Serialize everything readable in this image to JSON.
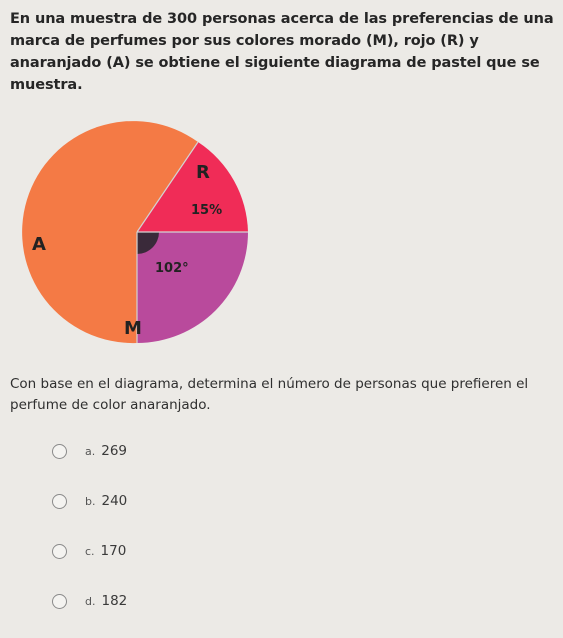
{
  "question": {
    "text": "En una muestra de 300 personas acerca de las preferencias de una marca de perfumes por sus colores morado (M), rojo (R) y anaranjado (A) se obtiene el siguiente diagrama de pastel que se muestra."
  },
  "chart_data": {
    "type": "pie",
    "slices": [
      {
        "name": "A",
        "label": "A",
        "color": "#f47a45"
      },
      {
        "name": "R",
        "label": "R",
        "value_label": "15%",
        "value": 15,
        "unit": "%",
        "color": "#f02c57"
      },
      {
        "name": "M",
        "label": "M",
        "value_label": "102°",
        "value": 102,
        "unit": "degrees",
        "color": "#b94a9c"
      }
    ]
  },
  "prompt": {
    "text": "Con base en el diagrama, determina el número de personas que prefieren el perfume de color anaranjado."
  },
  "options": [
    {
      "letter": "a.",
      "value": "269"
    },
    {
      "letter": "b.",
      "value": "240"
    },
    {
      "letter": "c.",
      "value": "170"
    },
    {
      "letter": "d.",
      "value": "182"
    }
  ]
}
